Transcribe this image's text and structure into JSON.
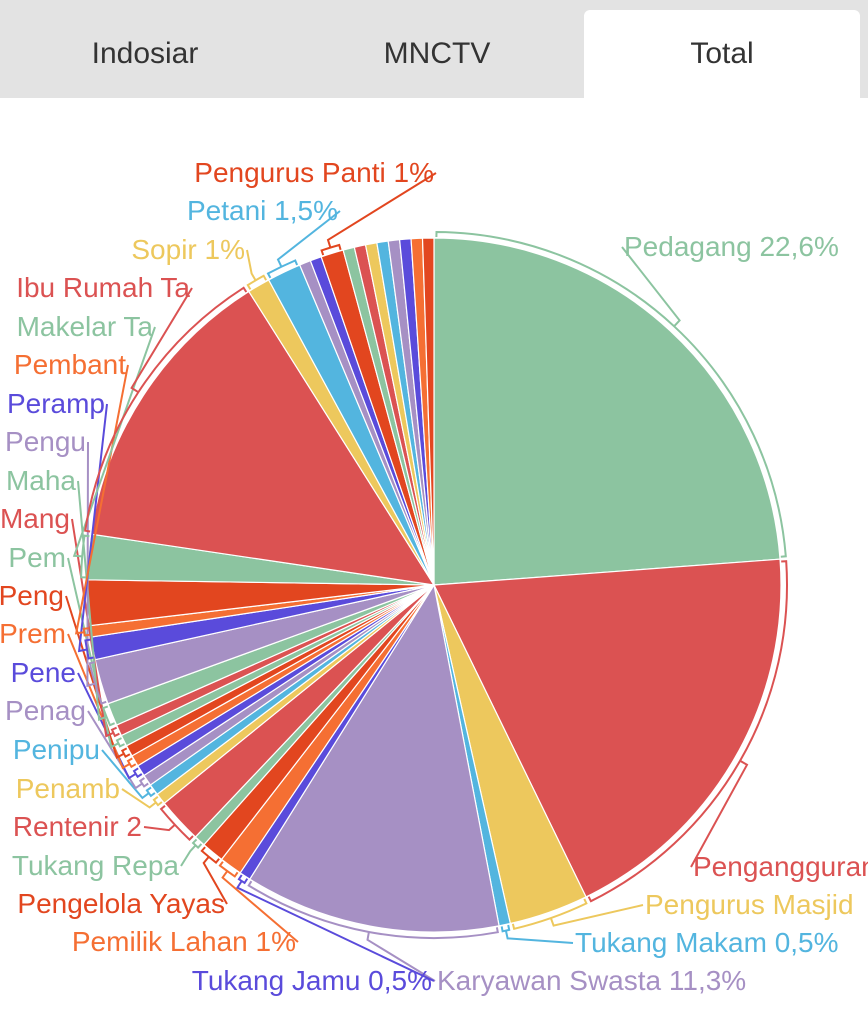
{
  "tabs": [
    {
      "label": "Indosiar"
    },
    {
      "label": "MNCTV"
    },
    {
      "label": "Total"
    }
  ],
  "chart_data": {
    "type": "pie",
    "title": "",
    "slices": [
      {
        "label": "Pedagang 22,6%",
        "value": 22.6,
        "color": "#8cc4a0"
      },
      {
        "label": "Pengangguran",
        "value": 18.0,
        "color": "#db5252"
      },
      {
        "label": "Pengurus Masjid",
        "value": 3.5,
        "color": "#edc85d"
      },
      {
        "label": "Tukang Makam 0,5%",
        "value": 0.5,
        "color": "#53b5df"
      },
      {
        "label": "Karyawan Swasta 11,3%",
        "value": 11.3,
        "color": "#a690c4"
      },
      {
        "label": "Tukang Jamu 0,5%",
        "value": 0.5,
        "color": "#5a4bdb"
      },
      {
        "label": "Pemilik Lahan 1%",
        "value": 1.0,
        "color": "#f56f33"
      },
      {
        "label": "Pengelola Yayas",
        "value": 1.0,
        "color": "#e2461f"
      },
      {
        "label": "Tukang Repa",
        "value": 0.5,
        "color": "#8cc4a0"
      },
      {
        "label": "Rentenir 2",
        "value": 2.0,
        "color": "#db5252"
      },
      {
        "label": "Penamb",
        "value": 0.5,
        "color": "#edc85d"
      },
      {
        "label": "Penipu",
        "value": 0.5,
        "color": "#53b5df"
      },
      {
        "label": "Penag",
        "value": 0.5,
        "color": "#a690c4"
      },
      {
        "label": "Pene",
        "value": 0.5,
        "color": "#5a4bdb"
      },
      {
        "label": "Prem",
        "value": 0.5,
        "color": "#f56f33"
      },
      {
        "label": "Peng",
        "value": 0.5,
        "color": "#e2461f"
      },
      {
        "label": "Pem",
        "value": 0.5,
        "color": "#8cc4a0"
      },
      {
        "label": "Mang",
        "value": 0.5,
        "color": "#db5252"
      },
      {
        "label": "Maha",
        "value": 1.0,
        "color": "#8cc4a0"
      },
      {
        "label": "Pengu",
        "value": 2.0,
        "color": "#a690c4"
      },
      {
        "label": "Peramp",
        "value": 1.0,
        "color": "#5a4bdb"
      },
      {
        "label": "Pembant",
        "value": 0.5,
        "color": "#f56f33"
      },
      {
        "label": "",
        "value": 2.0,
        "color": "#e2461f"
      },
      {
        "label": "Makelar Ta",
        "value": 2.0,
        "color": "#8cc4a0"
      },
      {
        "label": "Ibu Rumah Ta",
        "value": 13.0,
        "color": "#db5252"
      },
      {
        "label": "Sopir 1%",
        "value": 1.0,
        "color": "#edc85d"
      },
      {
        "label": "Petani 1,5%",
        "value": 1.5,
        "color": "#53b5df"
      },
      {
        "label": "",
        "value": 0.5,
        "color": "#a690c4"
      },
      {
        "label": "",
        "value": 0.5,
        "color": "#5a4bdb"
      },
      {
        "label": "Pengurus Panti 1%",
        "value": 1.0,
        "color": "#e2461f"
      },
      {
        "label": "",
        "value": 0.5,
        "color": "#8cc4a0"
      },
      {
        "label": "",
        "value": 0.5,
        "color": "#db5252"
      },
      {
        "label": "",
        "value": 0.5,
        "color": "#edc85d"
      },
      {
        "label": "",
        "value": 0.5,
        "color": "#53b5df"
      },
      {
        "label": "",
        "value": 0.5,
        "color": "#a690c4"
      },
      {
        "label": "",
        "value": 0.5,
        "color": "#5a4bdb"
      },
      {
        "label": "",
        "value": 0.5,
        "color": "#f56f33"
      },
      {
        "label": "",
        "value": 0.5,
        "color": "#e2461f"
      }
    ]
  }
}
